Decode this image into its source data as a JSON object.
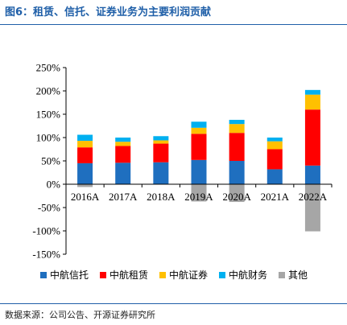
{
  "title": "图6：租赁、信托、证券业务为主要利润贡献",
  "source": "数据来源：公司公告、开源证券研究所",
  "chart_data": {
    "type": "bar",
    "stacked": true,
    "categories": [
      "2016A",
      "2017A",
      "2018A",
      "2019A",
      "2020A",
      "2021A",
      "2022A"
    ],
    "ylim": [
      -150,
      250
    ],
    "yticks": [
      -150,
      -100,
      -50,
      0,
      50,
      100,
      150,
      200,
      250
    ],
    "ytick_labels": [
      "-150%",
      "-100%",
      "-50%",
      "0%",
      "50%",
      "100%",
      "150%",
      "200%",
      "250%"
    ],
    "grid": false,
    "legend_position": "bottom",
    "series": [
      {
        "name": "中航信托",
        "color": "#1f6fbf",
        "values": [
          45,
          46,
          47,
          52,
          50,
          32,
          40
        ]
      },
      {
        "name": "中航租赁",
        "color": "#ff0000",
        "values": [
          34,
          36,
          40,
          56,
          60,
          43,
          120
        ]
      },
      {
        "name": "中航证券",
        "color": "#ffc000",
        "values": [
          14,
          9,
          7,
          13,
          19,
          17,
          32
        ]
      },
      {
        "name": "中航财务",
        "color": "#00b0f0",
        "values": [
          13,
          9,
          9,
          13,
          9,
          8,
          10
        ]
      },
      {
        "name": "其他",
        "color": "#a6a6a6",
        "values": [
          -6,
          0,
          0,
          -37,
          -38,
          0,
          -101
        ]
      }
    ]
  }
}
